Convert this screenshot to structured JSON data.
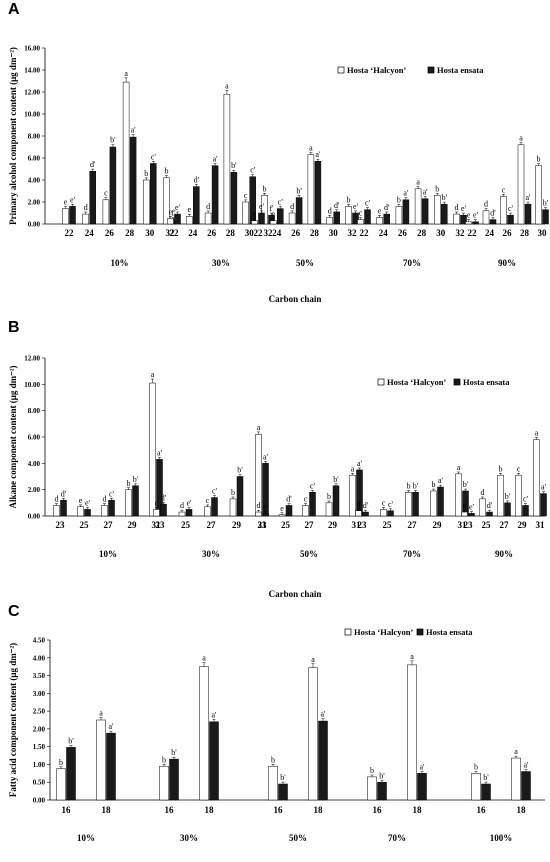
{
  "chart_data": [
    {
      "type": "bar",
      "panel": "A",
      "ylabel": "Primary alcohol component content (μg dm⁻²)",
      "xlabel": "Carbon chain",
      "ylim": [
        0,
        16
      ],
      "yticks": [
        "0.00",
        "2.00",
        "4.00",
        "6.00",
        "8.00",
        "10.00",
        "12.00",
        "14.00",
        "16.00"
      ],
      "legend_position": "top-right",
      "groups": [
        {
          "label": "10%",
          "categories": [
            "22",
            "24",
            "26",
            "28",
            "30",
            "32"
          ],
          "series": [
            {
              "name": "Hosta 'Halcyon'",
              "values": [
                1.4,
                0.9,
                2.2,
                12.9,
                4.0,
                4.2
              ],
              "sig": [
                "e",
                "d",
                "c",
                "a",
                "b",
                "b"
              ]
            },
            {
              "name": "Hosta ensata",
              "values": [
                1.6,
                4.8,
                7.0,
                7.9,
                5.5,
                0.4
              ],
              "sig": [
                "e'",
                "d'",
                "b'",
                "a'",
                "c'",
                "f'"
              ]
            }
          ]
        },
        {
          "label": "30%",
          "categories": [
            "22",
            "24",
            "26",
            "28",
            "30",
            "32"
          ],
          "series": [
            {
              "name": "Hosta 'Halcyon'",
              "values": [
                0.5,
                0.7,
                1.0,
                11.8,
                2.0,
                2.6
              ],
              "sig": [
                "e",
                "e",
                "d",
                "a",
                "c",
                "b"
              ]
            },
            {
              "name": "Hosta ensata",
              "values": [
                0.9,
                3.4,
                5.3,
                4.7,
                4.3,
                0.8
              ],
              "sig": [
                "e'",
                "d'",
                "a'",
                "b'",
                "c'",
                "f'"
              ]
            }
          ]
        },
        {
          "label": "50%",
          "categories": [
            "22",
            "24",
            "26",
            "28",
            "30",
            "32"
          ],
          "series": [
            {
              "name": "Hosta 'Halcyon'",
              "values": [
                0.3,
                0.3,
                1.0,
                6.3,
                0.6,
                1.6
              ],
              "sig": [
                "e",
                "e",
                "d",
                "a",
                "d",
                "b"
              ]
            },
            {
              "name": "Hosta ensata",
              "values": [
                1.0,
                1.4,
                2.4,
                5.7,
                1.1,
                1.0
              ],
              "sig": [
                "e'",
                "c'",
                "b'",
                "a'",
                "d'",
                "e'"
              ]
            }
          ]
        },
        {
          "label": "70%",
          "categories": [
            "22",
            "24",
            "26",
            "28",
            "30",
            "32"
          ],
          "series": [
            {
              "name": "Hosta 'Halcyon'",
              "values": [
                0.4,
                0.6,
                1.6,
                3.2,
                2.6,
                0.9
              ],
              "sig": [
                "c",
                "e",
                "b",
                "a",
                "b",
                "d"
              ]
            },
            {
              "name": "Hosta ensata",
              "values": [
                1.3,
                0.9,
                2.2,
                2.3,
                1.8,
                0.8
              ],
              "sig": [
                "c'",
                "d'",
                "a'",
                "a'",
                "b'",
                "e'"
              ]
            }
          ]
        },
        {
          "label": "90%",
          "categories": [
            "22",
            "24",
            "26",
            "28",
            "30"
          ],
          "series": [
            {
              "name": "Hosta 'Halcyon'",
              "values": [
                0.2,
                1.2,
                2.5,
                7.2,
                5.3
              ],
              "sig": [
                "e",
                "d",
                "c",
                "a",
                "b"
              ]
            },
            {
              "name": "Hosta ensata",
              "values": [
                0.2,
                0.4,
                0.8,
                1.8,
                1.3
              ],
              "sig": [
                "e'",
                "d'",
                "c'",
                "a'",
                "b'"
              ]
            }
          ]
        }
      ]
    },
    {
      "type": "bar",
      "panel": "B",
      "ylabel": "Alkane component content (μg dm⁻²)",
      "xlabel": "Carbon chain",
      "ylim": [
        0,
        12
      ],
      "yticks": [
        "0.00",
        "2.00",
        "4.00",
        "6.00",
        "8.00",
        "10.00",
        "12.00"
      ],
      "legend_position": "top-right",
      "groups": [
        {
          "label": "10%",
          "categories": [
            "23",
            "25",
            "27",
            "29",
            "31"
          ],
          "series": [
            {
              "name": "Hosta 'Halcyon'",
              "values": [
                0.8,
                0.7,
                0.8,
                2.0,
                10.1
              ],
              "sig": [
                "d",
                "e",
                "d",
                "b",
                "a"
              ]
            },
            {
              "name": "Hosta ensata",
              "values": [
                1.2,
                0.5,
                1.2,
                2.3,
                4.3
              ],
              "sig": [
                "d'",
                "e'",
                "c'",
                "b'",
                "a'"
              ]
            }
          ]
        },
        {
          "label": "30%",
          "categories": [
            "23",
            "25",
            "27",
            "29",
            "31"
          ],
          "series": [
            {
              "name": "Hosta 'Halcyon'",
              "values": [
                0.5,
                0.3,
                0.7,
                1.3,
                6.2
              ],
              "sig": [
                "c",
                "d",
                "c",
                "b",
                "a"
              ]
            },
            {
              "name": "Hosta ensata",
              "values": [
                0.9,
                0.5,
                1.4,
                3.0,
                4.0
              ],
              "sig": [
                "d'",
                "e'",
                "c'",
                "b'",
                "a'"
              ]
            }
          ]
        },
        {
          "label": "50%",
          "categories": [
            "23",
            "25",
            "27",
            "29",
            "31"
          ],
          "series": [
            {
              "name": "Hosta 'Halcyon'",
              "values": [
                0.3,
                0.1,
                0.8,
                1.0,
                3.1
              ],
              "sig": [
                "d",
                "e",
                "c",
                "b",
                "a"
              ]
            },
            {
              "name": "Hosta ensata",
              "values": [
                0.2,
                0.8,
                1.8,
                2.3,
                3.5
              ],
              "sig": [
                "e'",
                "d'",
                "c'",
                "b'",
                "a'"
              ]
            }
          ]
        },
        {
          "label": "70%",
          "categories": [
            "23",
            "25",
            "27",
            "29",
            "31"
          ],
          "series": [
            {
              "name": "Hosta 'Halcyon'",
              "values": [
                0.4,
                0.5,
                1.8,
                1.9,
                3.2
              ],
              "sig": [
                "d",
                "c",
                "b",
                "b",
                "a"
              ]
            },
            {
              "name": "Hosta ensata",
              "values": [
                0.3,
                0.4,
                1.8,
                2.2,
                1.9
              ],
              "sig": [
                "d'",
                "c'",
                "b'",
                "a'",
                "b'"
              ]
            }
          ]
        },
        {
          "label": "90%",
          "categories": [
            "23",
            "25",
            "27",
            "29",
            "31"
          ],
          "series": [
            {
              "name": "Hosta 'Halcyon'",
              "values": [
                0.3,
                1.3,
                3.1,
                3.1,
                5.8
              ],
              "sig": [
                "e",
                "d",
                "b",
                "c",
                "a"
              ]
            },
            {
              "name": "Hosta ensata",
              "values": [
                0.2,
                0.3,
                1.0,
                0.8,
                1.7
              ],
              "sig": [
                "e'",
                "d'",
                "b'",
                "c'",
                "a'"
              ]
            }
          ]
        }
      ]
    },
    {
      "type": "bar",
      "panel": "C",
      "ylabel": "Fatty acid component content (μg dm⁻²)",
      "xlabel": "Carbon chain",
      "ylim": [
        0,
        4.5
      ],
      "yticks": [
        "0.00",
        "0.50",
        "1.00",
        "1.50",
        "2.00",
        "2.50",
        "3.00",
        "3.50",
        "4.00",
        "4.50"
      ],
      "legend_position": "top-right",
      "groups": [
        {
          "label": "10%",
          "categories": [
            "16",
            "18"
          ],
          "series": [
            {
              "name": "Hosta 'Halcyon'",
              "values": [
                0.88,
                2.25
              ],
              "sig": [
                "b",
                "a"
              ]
            },
            {
              "name": "Hosta ensata",
              "values": [
                1.48,
                1.88
              ],
              "sig": [
                "b'",
                "a'"
              ]
            }
          ]
        },
        {
          "label": "30%",
          "categories": [
            "16",
            "18"
          ],
          "series": [
            {
              "name": "Hosta 'Halcyon'",
              "values": [
                0.95,
                3.75
              ],
              "sig": [
                "b",
                "a"
              ]
            },
            {
              "name": "Hosta ensata",
              "values": [
                1.15,
                2.2
              ],
              "sig": [
                "b'",
                "a'"
              ]
            }
          ]
        },
        {
          "label": "50%",
          "categories": [
            "16",
            "18"
          ],
          "series": [
            {
              "name": "Hosta 'Halcyon'",
              "values": [
                0.95,
                3.72
              ],
              "sig": [
                "b",
                "a"
              ]
            },
            {
              "name": "Hosta ensata",
              "values": [
                0.45,
                2.22
              ],
              "sig": [
                "b'",
                "a'"
              ]
            }
          ]
        },
        {
          "label": "70%",
          "categories": [
            "16",
            "18"
          ],
          "series": [
            {
              "name": "Hosta 'Halcyon'",
              "values": [
                0.65,
                3.8
              ],
              "sig": [
                "b",
                "a"
              ]
            },
            {
              "name": "Hosta ensata",
              "values": [
                0.5,
                0.75
              ],
              "sig": [
                "b'",
                "a'"
              ]
            }
          ]
        },
        {
          "label": "100%",
          "categories": [
            "16",
            "18"
          ],
          "series": [
            {
              "name": "Hosta 'Halcyon'",
              "values": [
                0.75,
                1.18
              ],
              "sig": [
                "b",
                "a"
              ]
            },
            {
              "name": "Hosta ensata",
              "values": [
                0.45,
                0.8
              ],
              "sig": [
                "b'",
                "a'"
              ]
            }
          ]
        }
      ]
    }
  ],
  "legend": {
    "halcyon": "Hosta ‘Halcyon’",
    "ensata": "Hosta ensata"
  },
  "colors": {
    "halcyon": "#ffffff",
    "ensata": "#1a1a1a",
    "stroke": "#000000"
  }
}
